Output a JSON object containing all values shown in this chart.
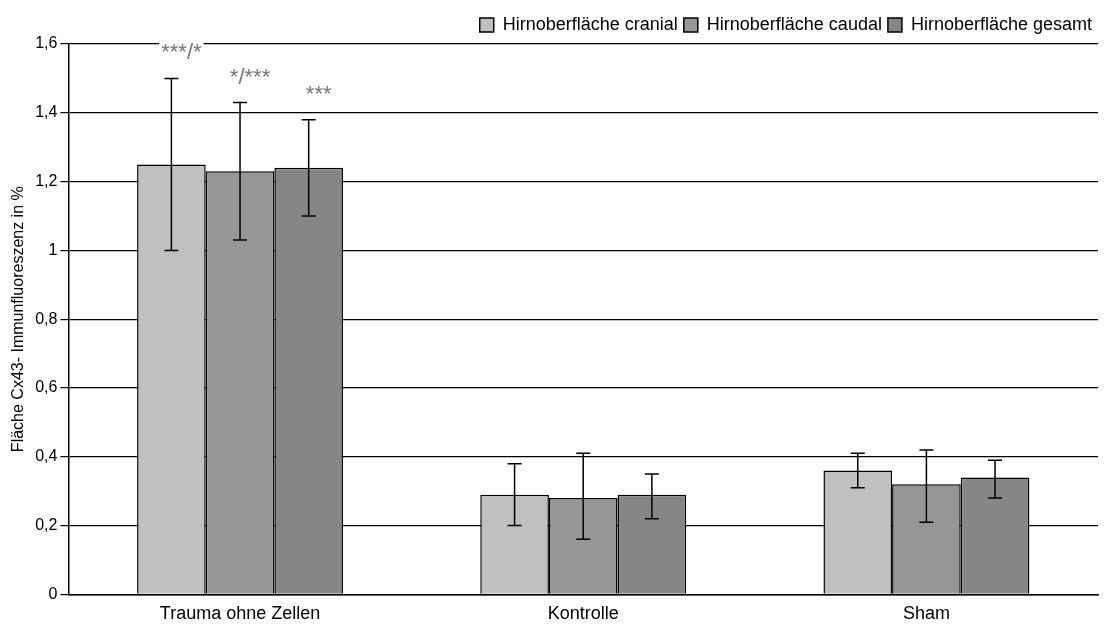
{
  "chart_data": {
    "type": "bar",
    "ylabel": "Fläche Cx43- Immunfluoreszenz in %",
    "categories": [
      "Trauma ohne Zellen",
      "Kontrolle",
      "Sham"
    ],
    "series": [
      {
        "name": "Hirnoberfläche cranial",
        "color": "#c0c0c0",
        "values": [
          1.25,
          0.29,
          0.36
        ],
        "errors": [
          [
            1.0,
            1.5
          ],
          [
            0.2,
            0.38
          ],
          [
            0.31,
            0.41
          ]
        ]
      },
      {
        "name": "Hirnoberfläche caudal",
        "color": "#969696",
        "values": [
          1.23,
          0.28,
          0.32
        ],
        "errors": [
          [
            1.03,
            1.43
          ],
          [
            0.16,
            0.41
          ],
          [
            0.21,
            0.42
          ]
        ]
      },
      {
        "name": "Hirnoberfläche gesamt",
        "color": "#868686",
        "values": [
          1.24,
          0.29,
          0.34
        ],
        "errors": [
          [
            1.1,
            1.38
          ],
          [
            0.22,
            0.35
          ],
          [
            0.28,
            0.39
          ]
        ]
      }
    ],
    "annotations": [
      "***/*",
      "*/***",
      "***"
    ],
    "ylim": [
      0,
      1.6
    ],
    "yticks": [
      0,
      {
        "value": 0.2,
        "label": "0,2"
      },
      {
        "value": 0.4,
        "label": "0,4"
      },
      {
        "value": 0.6,
        "label": "0,6"
      },
      {
        "value": 0.8,
        "label": "0,8"
      },
      1,
      {
        "value": 1.2,
        "label": "1,2"
      },
      {
        "value": 1.4,
        "label": "1,4"
      },
      {
        "value": 1.6,
        "label": "1,6"
      }
    ],
    "grid": "y",
    "legend": "top right"
  }
}
